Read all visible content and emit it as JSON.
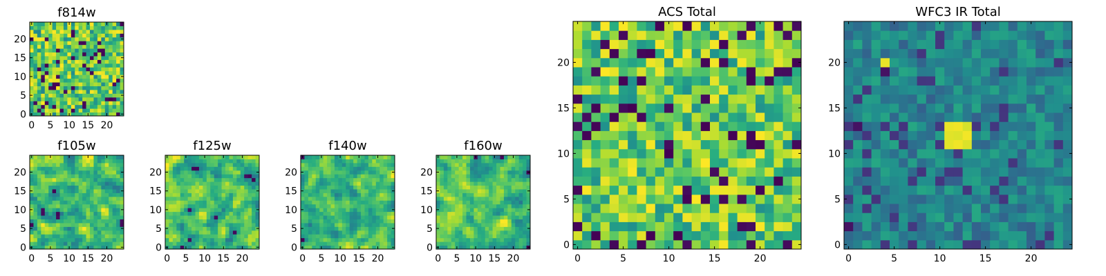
{
  "chart_data": [
    {
      "type": "heatmap",
      "title": "f814w",
      "size": 25,
      "colormap": "viridis",
      "xticks": [
        0,
        5,
        10,
        15,
        20
      ],
      "yticks": [
        0,
        5,
        10,
        15,
        20
      ],
      "seed": 11,
      "smooth": 0,
      "floor": 0.38,
      "hotspot": false
    },
    {
      "type": "heatmap",
      "title": "f105w",
      "size": 25,
      "colormap": "viridis",
      "xticks": [
        0,
        5,
        10,
        15,
        20
      ],
      "yticks": [
        0,
        5,
        10,
        15,
        20
      ],
      "seed": 23,
      "smooth": 1,
      "floor": 0.3,
      "hotspot": false
    },
    {
      "type": "heatmap",
      "title": "f125w",
      "size": 25,
      "colormap": "viridis",
      "xticks": [
        0,
        5,
        10,
        15,
        20
      ],
      "yticks": [
        0,
        5,
        10,
        15,
        20
      ],
      "seed": 37,
      "smooth": 1,
      "floor": 0.3,
      "hotspot": false
    },
    {
      "type": "heatmap",
      "title": "f140w",
      "size": 25,
      "colormap": "viridis",
      "xticks": [
        0,
        5,
        10,
        15,
        20
      ],
      "yticks": [
        0,
        5,
        10,
        15,
        20
      ],
      "seed": 41,
      "smooth": 1,
      "floor": 0.3,
      "hotspot": false
    },
    {
      "type": "heatmap",
      "title": "f160w",
      "size": 25,
      "colormap": "viridis",
      "xticks": [
        0,
        5,
        10,
        15,
        20
      ],
      "yticks": [
        0,
        5,
        10,
        15,
        20
      ],
      "seed": 53,
      "smooth": 1,
      "floor": 0.3,
      "hotspot": false
    },
    {
      "type": "heatmap",
      "title": "ACS Total",
      "size": 25,
      "colormap": "viridis",
      "xticks": [
        0,
        5,
        10,
        15,
        20
      ],
      "yticks": [
        0,
        5,
        10,
        15,
        20
      ],
      "seed": 67,
      "smooth": 0,
      "floor": 0.42,
      "hotspot": false
    },
    {
      "type": "heatmap",
      "title": "WFC3 IR Total",
      "size": 25,
      "colormap": "viridis",
      "xticks": [
        0,
        5,
        10,
        15,
        20
      ],
      "yticks": [
        0,
        5,
        10,
        15,
        20
      ],
      "seed": 79,
      "smooth": 0,
      "floor": 0.25,
      "hotspot": true,
      "hotspot_center": [
        12,
        12
      ]
    }
  ]
}
